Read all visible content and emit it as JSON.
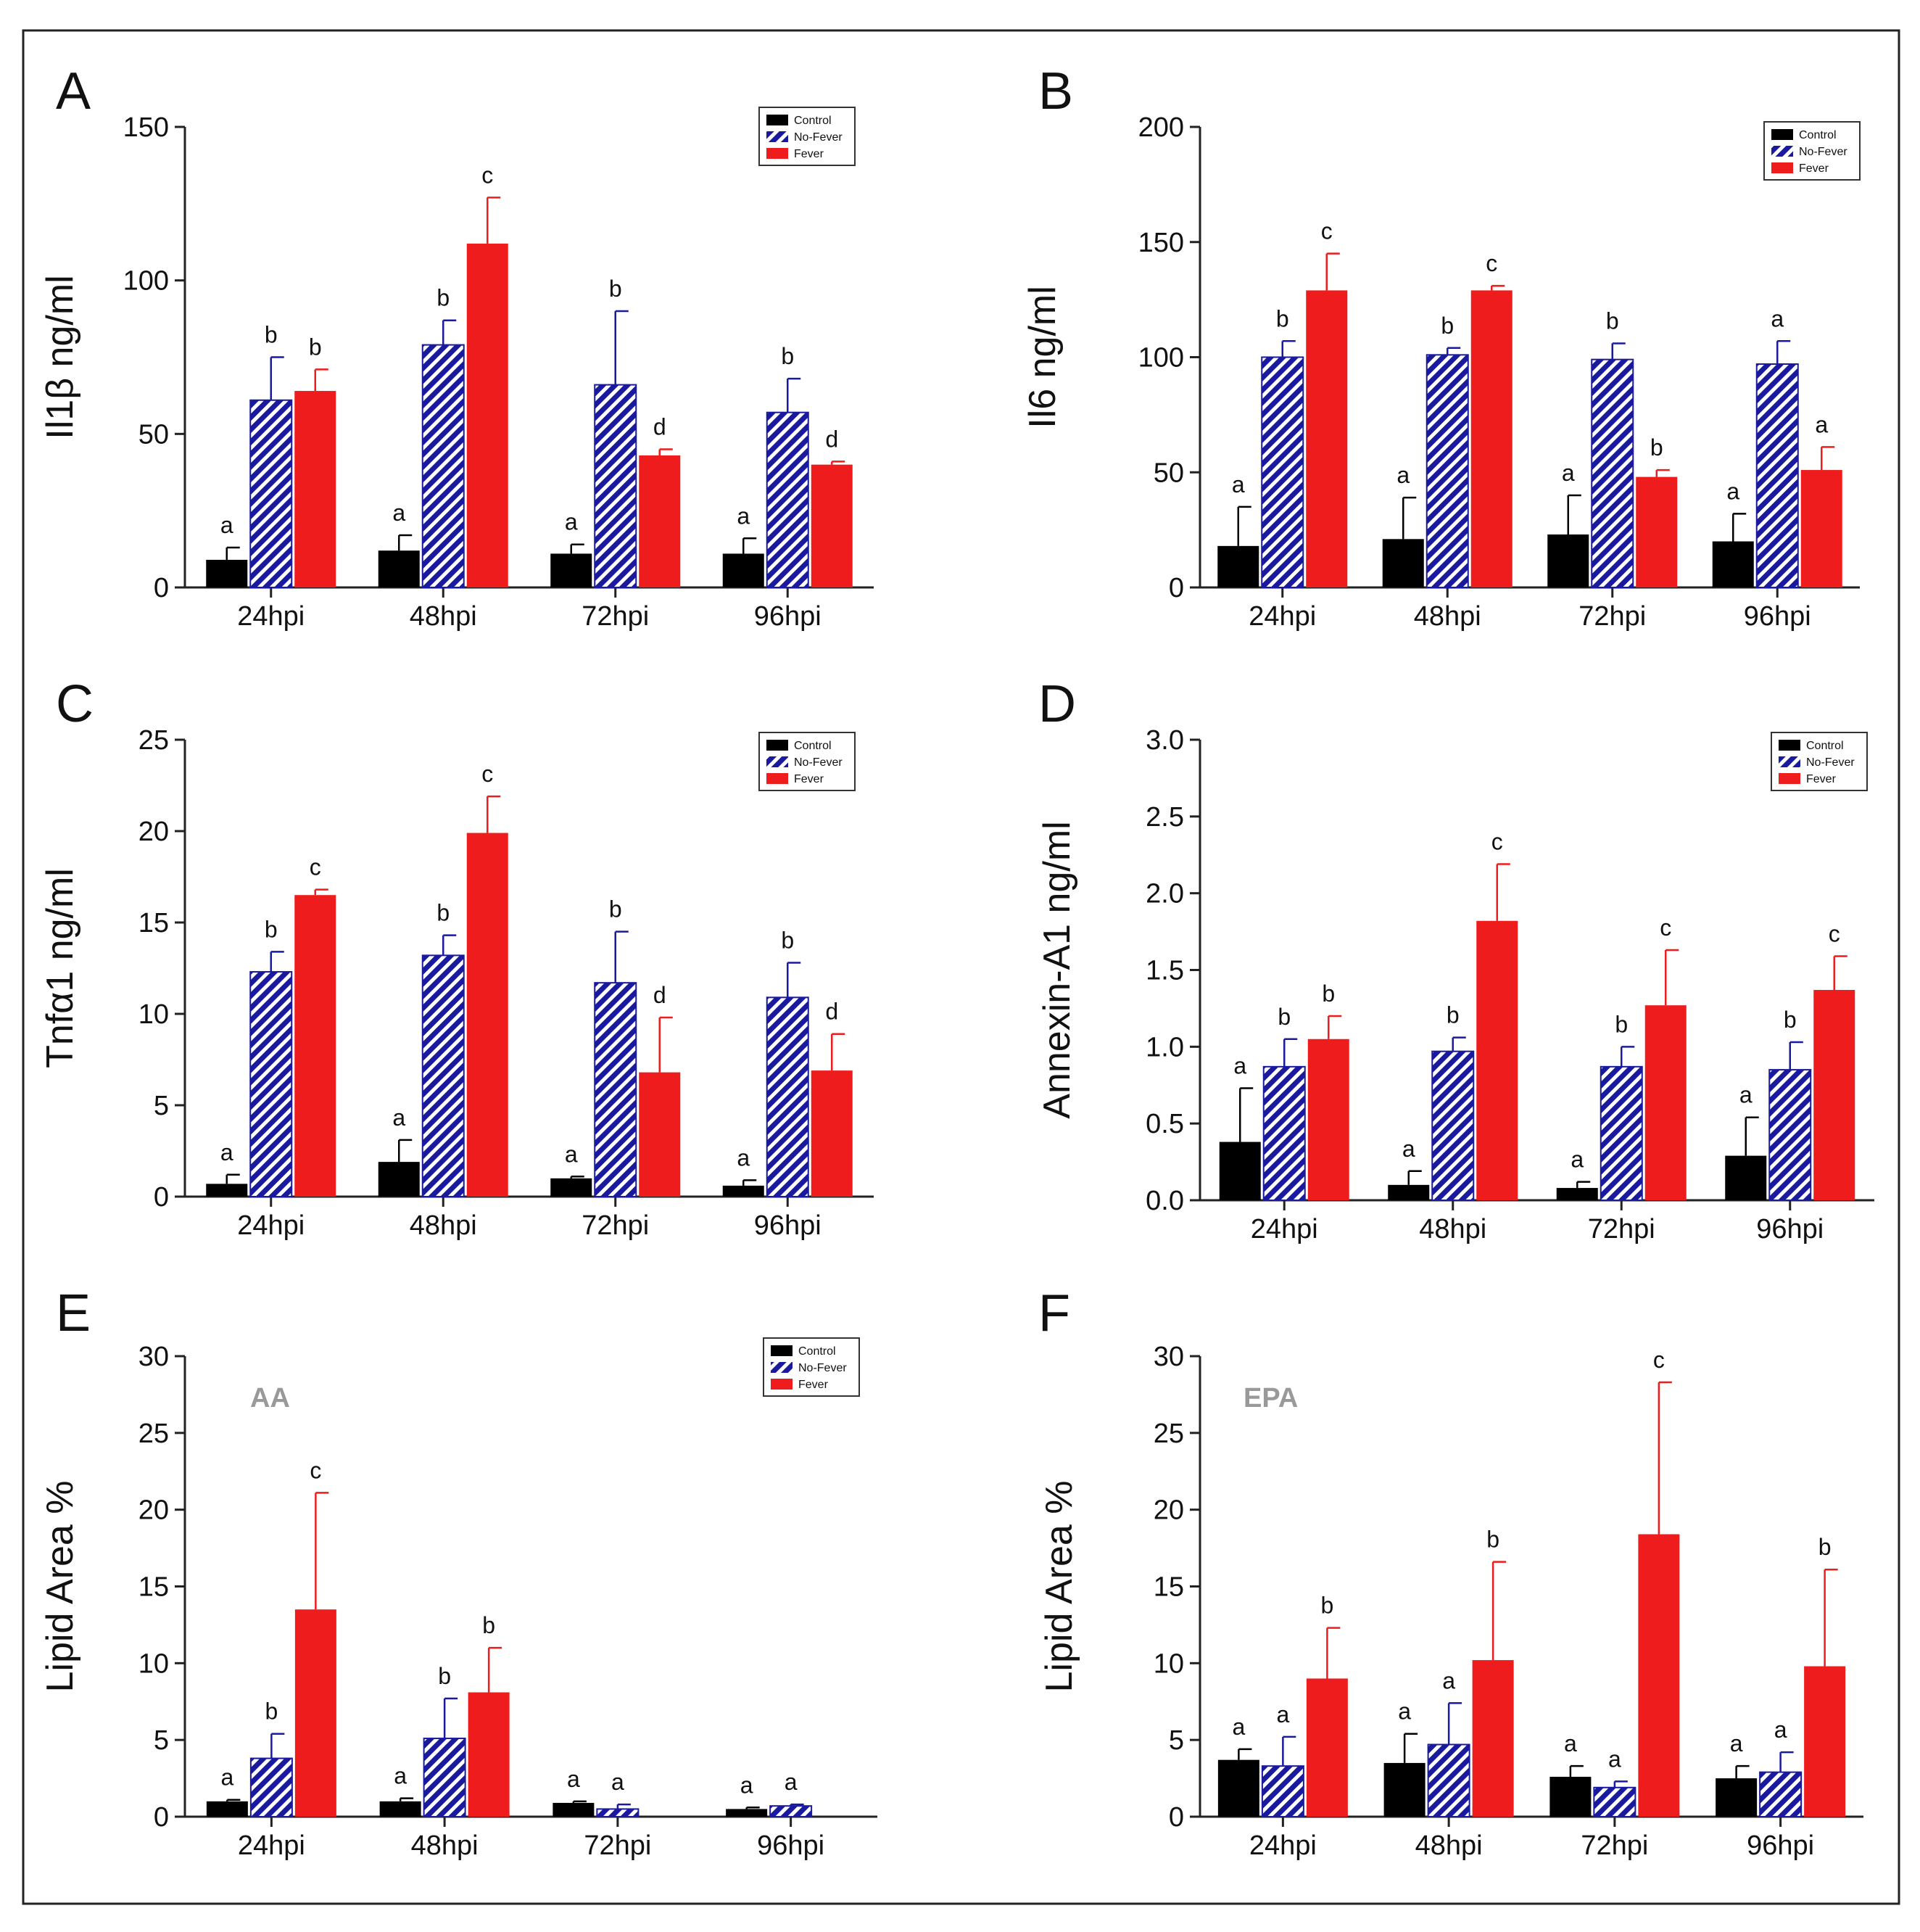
{
  "figure": {
    "description_legend": [
      "Control",
      "No-Fever",
      "Fever"
    ]
  },
  "chart_data": [
    {
      "panel": "A",
      "type": "bar",
      "title": "",
      "inset_label": "",
      "xlabel": "",
      "ylabel": "Il1β ng/ml",
      "categories": [
        "24hpi",
        "48hpi",
        "72hpi",
        "96hpi"
      ],
      "ylim": [
        0,
        150
      ],
      "yticks": [
        0,
        50,
        100,
        150
      ],
      "grid": false,
      "legend": "top-right",
      "series": [
        {
          "name": "Control",
          "color": "#000000",
          "pattern": "solid",
          "values": [
            9,
            12,
            11,
            11
          ],
          "errors": [
            4,
            5,
            3,
            5
          ],
          "letters": [
            "a",
            "a",
            "a",
            "a"
          ]
        },
        {
          "name": "No-Fever",
          "color": "#1a1a9e",
          "pattern": "hatch",
          "values": [
            61,
            79,
            66,
            57
          ],
          "errors": [
            14,
            8,
            24,
            11
          ],
          "letters": [
            "b",
            "b",
            "b",
            "b"
          ]
        },
        {
          "name": "Fever",
          "color": "#ee1c1c",
          "pattern": "solid",
          "values": [
            64,
            112,
            43,
            40
          ],
          "errors": [
            7,
            15,
            2,
            1
          ],
          "letters": [
            "b",
            "c",
            "d",
            "d"
          ]
        }
      ]
    },
    {
      "panel": "B",
      "type": "bar",
      "title": "",
      "inset_label": "",
      "xlabel": "",
      "ylabel": "Il6 ng/ml",
      "categories": [
        "24hpi",
        "48hpi",
        "72hpi",
        "96hpi"
      ],
      "ylim": [
        0,
        200
      ],
      "yticks": [
        0,
        50,
        100,
        150,
        200
      ],
      "grid": false,
      "legend": "top-right",
      "series": [
        {
          "name": "Control",
          "color": "#000000",
          "pattern": "solid",
          "values": [
            18,
            21,
            23,
            20
          ],
          "errors": [
            17,
            18,
            17,
            12
          ],
          "letters": [
            "a",
            "a",
            "a",
            "a"
          ]
        },
        {
          "name": "No-Fever",
          "color": "#1a1a9e",
          "pattern": "hatch",
          "values": [
            100,
            101,
            99,
            97
          ],
          "errors": [
            7,
            3,
            7,
            10
          ],
          "letters": [
            "b",
            "b",
            "b",
            "a"
          ]
        },
        {
          "name": "Fever",
          "color": "#ee1c1c",
          "pattern": "solid",
          "values": [
            129,
            129,
            48,
            51
          ],
          "errors": [
            16,
            2,
            3,
            10
          ],
          "letters": [
            "c",
            "c",
            "b",
            "a"
          ]
        }
      ]
    },
    {
      "panel": "C",
      "type": "bar",
      "title": "",
      "inset_label": "",
      "xlabel": "",
      "ylabel": "Tnfα1 ng/ml",
      "categories": [
        "24hpi",
        "48hpi",
        "72hpi",
        "96hpi"
      ],
      "ylim": [
        0,
        25
      ],
      "yticks": [
        0,
        5,
        10,
        15,
        20,
        25
      ],
      "grid": false,
      "legend": "top-right",
      "series": [
        {
          "name": "Control",
          "color": "#000000",
          "pattern": "solid",
          "values": [
            0.7,
            1.9,
            1.0,
            0.6
          ],
          "errors": [
            0.5,
            1.2,
            0.1,
            0.3
          ],
          "letters": [
            "a",
            "a",
            "a",
            "a"
          ]
        },
        {
          "name": "No-Fever",
          "color": "#1a1a9e",
          "pattern": "hatch",
          "values": [
            12.3,
            13.2,
            11.7,
            10.9
          ],
          "errors": [
            1.1,
            1.1,
            2.8,
            1.9
          ],
          "letters": [
            "b",
            "b",
            "b",
            "b"
          ]
        },
        {
          "name": "Fever",
          "color": "#ee1c1c",
          "pattern": "solid",
          "values": [
            16.5,
            19.9,
            6.8,
            6.9
          ],
          "errors": [
            0.3,
            2.0,
            3.0,
            2.0
          ],
          "letters": [
            "c",
            "c",
            "d",
            "d"
          ]
        }
      ]
    },
    {
      "panel": "D",
      "type": "bar",
      "title": "",
      "inset_label": "",
      "xlabel": "",
      "ylabel": "Annexin-A1 ng/ml",
      "categories": [
        "24hpi",
        "48hpi",
        "72hpi",
        "96hpi"
      ],
      "ylim": [
        0,
        3.0
      ],
      "yticks": [
        "0.0",
        "0.5",
        "1.0",
        "1.5",
        "2.0",
        "2.5",
        "3.0"
      ],
      "grid": false,
      "legend": "top-right",
      "series": [
        {
          "name": "Control",
          "color": "#000000",
          "pattern": "solid",
          "values": [
            0.38,
            0.1,
            0.08,
            0.29
          ],
          "errors": [
            0.35,
            0.09,
            0.04,
            0.25
          ],
          "letters": [
            "a",
            "a",
            "a",
            "a"
          ]
        },
        {
          "name": "No-Fever",
          "color": "#1a1a9e",
          "pattern": "hatch",
          "values": [
            0.87,
            0.97,
            0.87,
            0.85
          ],
          "errors": [
            0.18,
            0.09,
            0.13,
            0.18
          ],
          "letters": [
            "b",
            "b",
            "b",
            "b"
          ]
        },
        {
          "name": "Fever",
          "color": "#ee1c1c",
          "pattern": "solid",
          "values": [
            1.05,
            1.82,
            1.27,
            1.37
          ],
          "errors": [
            0.15,
            0.37,
            0.36,
            0.22
          ],
          "letters": [
            "b",
            "c",
            "c",
            "c"
          ]
        }
      ]
    },
    {
      "panel": "E",
      "type": "bar",
      "title": "",
      "inset_label": "AA",
      "xlabel": "",
      "ylabel": "Lipid Area %",
      "categories": [
        "24hpi",
        "48hpi",
        "72hpi",
        "96hpi"
      ],
      "ylim": [
        0,
        30
      ],
      "yticks": [
        0,
        5,
        10,
        15,
        20,
        25,
        30
      ],
      "grid": false,
      "legend": "top-right",
      "series": [
        {
          "name": "Control",
          "color": "#000000",
          "pattern": "solid",
          "values": [
            1.0,
            1.0,
            0.9,
            0.5
          ],
          "errors": [
            0.1,
            0.2,
            0.1,
            0.1
          ],
          "letters": [
            "a",
            "a",
            "a",
            "a"
          ]
        },
        {
          "name": "No-Fever",
          "color": "#1a1a9e",
          "pattern": "hatch",
          "values": [
            3.8,
            5.1,
            0.5,
            0.7
          ],
          "errors": [
            1.6,
            2.6,
            0.3,
            0.1
          ],
          "letters": [
            "b",
            "b",
            "a",
            "a"
          ]
        },
        {
          "name": "Fever",
          "color": "#ee1c1c",
          "pattern": "solid",
          "values": [
            13.5,
            8.1,
            0,
            0
          ],
          "errors": [
            7.6,
            2.9,
            0,
            0
          ],
          "letters": [
            "c",
            "b",
            "",
            ""
          ]
        }
      ]
    },
    {
      "panel": "F",
      "type": "bar",
      "title": "",
      "inset_label": "EPA",
      "xlabel": "",
      "ylabel": "Lipid Area %",
      "categories": [
        "24hpi",
        "48hpi",
        "72hpi",
        "96hpi"
      ],
      "ylim": [
        0,
        30
      ],
      "yticks": [
        0,
        5,
        10,
        15,
        20,
        25,
        30
      ],
      "grid": false,
      "legend": "none",
      "series": [
        {
          "name": "Control",
          "color": "#000000",
          "pattern": "solid",
          "values": [
            3.7,
            3.5,
            2.6,
            2.5
          ],
          "errors": [
            0.7,
            1.9,
            0.7,
            0.8
          ],
          "letters": [
            "a",
            "a",
            "a",
            "a"
          ]
        },
        {
          "name": "No-Fever",
          "color": "#1a1a9e",
          "pattern": "hatch",
          "values": [
            3.3,
            4.7,
            1.9,
            2.9
          ],
          "errors": [
            1.9,
            2.7,
            0.4,
            1.3
          ],
          "letters": [
            "a",
            "a",
            "a",
            "a"
          ]
        },
        {
          "name": "Fever",
          "color": "#ee1c1c",
          "pattern": "solid",
          "values": [
            9.0,
            10.2,
            18.4,
            9.8
          ],
          "errors": [
            3.3,
            6.4,
            9.9,
            6.3
          ],
          "letters": [
            "b",
            "b",
            "c",
            "b"
          ]
        }
      ]
    }
  ]
}
